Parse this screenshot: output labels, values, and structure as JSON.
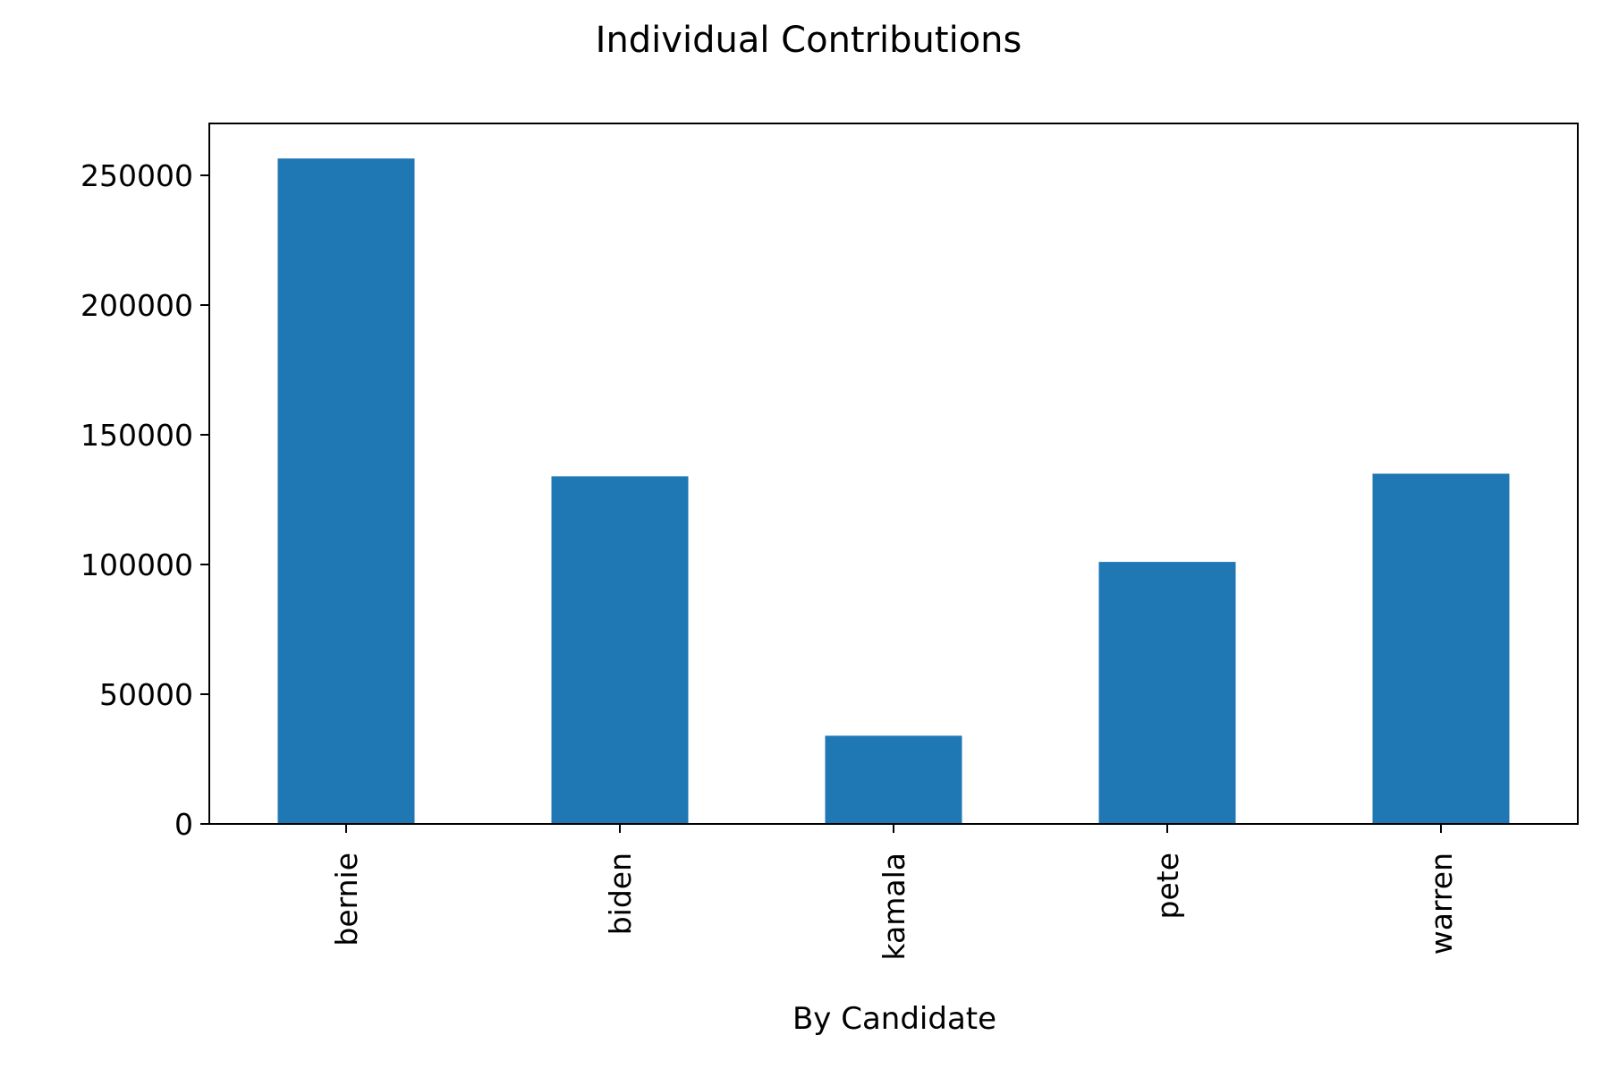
{
  "chart_data": {
    "type": "bar",
    "title": "Individual Contributions",
    "xlabel": "By Candidate",
    "ylabel": "",
    "categories": [
      "bernie",
      "biden",
      "kamala",
      "pete",
      "warren"
    ],
    "values": [
      256500,
      134000,
      34000,
      101000,
      135000
    ],
    "ylim": [
      0,
      270000
    ],
    "yticks": [
      0,
      50000,
      100000,
      150000,
      200000,
      250000
    ],
    "ytick_labels": [
      "0",
      "50000",
      "100000",
      "150000",
      "200000",
      "250000"
    ],
    "bar_color": "#1f77b4",
    "grid": false,
    "legend": "none"
  }
}
